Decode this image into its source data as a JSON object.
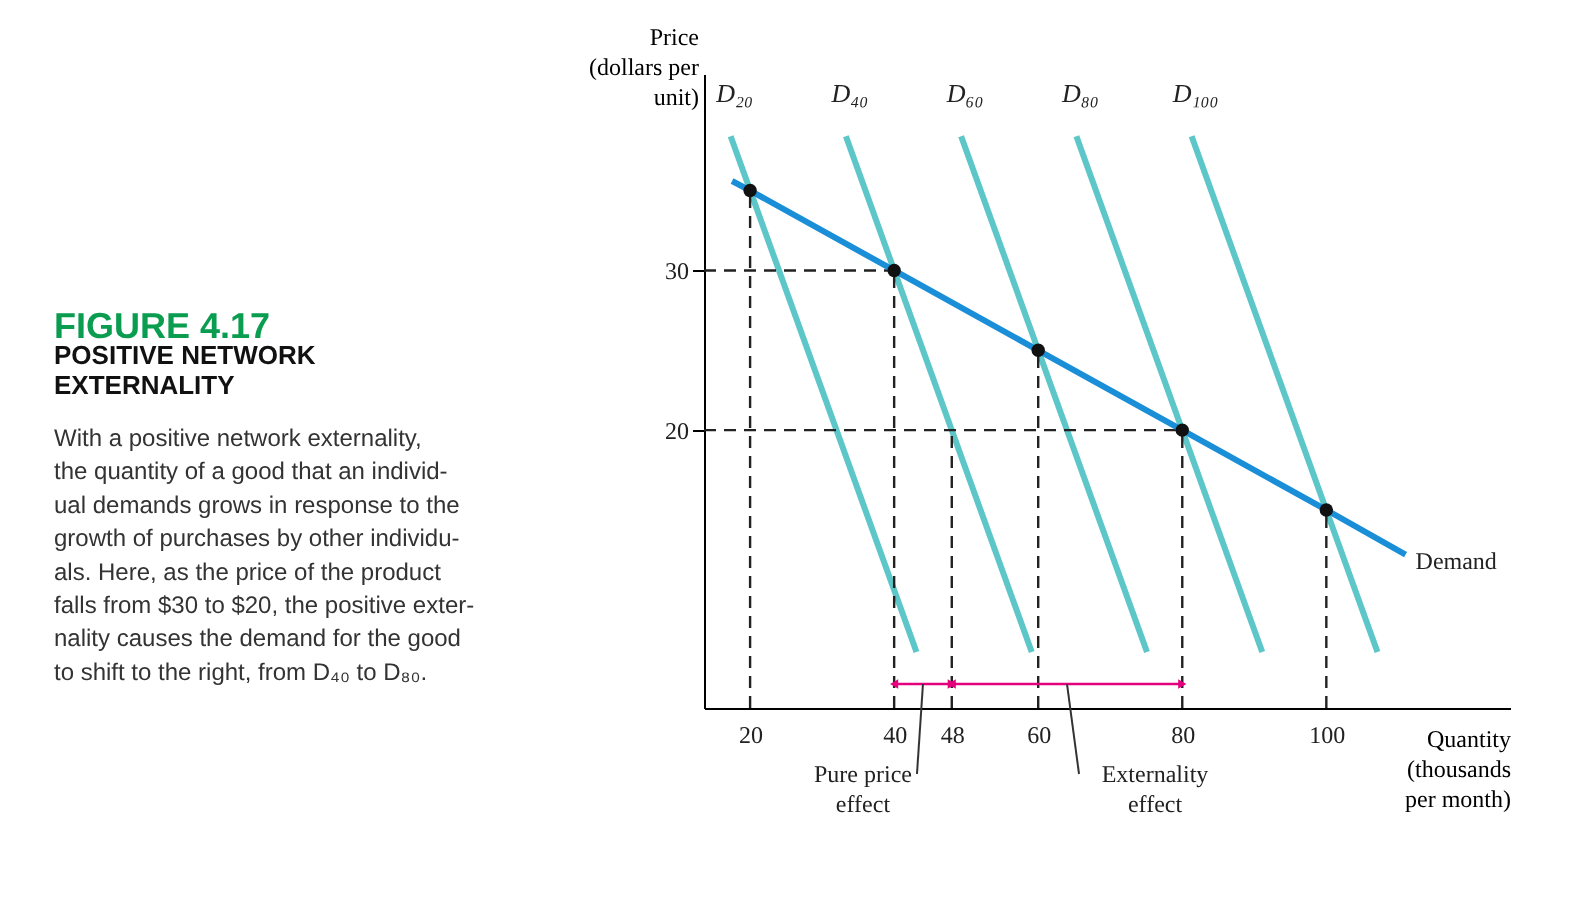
{
  "chart_data": {
    "type": "line",
    "xlabel": "Quantity\n(thousands\nper month)",
    "ylabel": "Price\n(dollars per\nunit)",
    "xlim": [
      13.6,
      125.5
    ],
    "ylim": [
      2.6,
      42.3
    ],
    "xticks": [
      20,
      40,
      48,
      60,
      80,
      100
    ],
    "yticks": [
      20,
      30
    ],
    "series": [
      {
        "name": "D₂₀",
        "color": "#5cc6c9",
        "x": [
          17.3,
          43.1
        ],
        "values": [
          38.4,
          6.1
        ]
      },
      {
        "name": "D₄₀",
        "color": "#5cc6c9",
        "x": [
          33.3,
          59.1
        ],
        "values": [
          38.4,
          6.1
        ]
      },
      {
        "name": "D₆₀",
        "color": "#5cc6c9",
        "x": [
          49.3,
          75.1
        ],
        "values": [
          38.4,
          6.1
        ]
      },
      {
        "name": "D₈₀",
        "color": "#5cc6c9",
        "x": [
          65.3,
          91.1
        ],
        "values": [
          38.4,
          6.1
        ]
      },
      {
        "name": "D₁₀₀",
        "color": "#5cc6c9",
        "x": [
          81.3,
          107.1
        ],
        "values": [
          38.4,
          6.1
        ]
      },
      {
        "type": "line",
        "color": "#222222",
        "line_style": "dashed",
        "x": [
          20,
          20
        ],
        "values": [
          2.6,
          35
        ]
      },
      {
        "type": "line",
        "color": "#222222",
        "line_style": "dashed",
        "x": [
          40,
          40
        ],
        "values": [
          2.6,
          30
        ]
      },
      {
        "type": "line",
        "color": "#222222",
        "line_style": "dashed",
        "x": [
          48,
          48
        ],
        "values": [
          2.6,
          20
        ]
      },
      {
        "type": "line",
        "color": "#222222",
        "line_style": "dashed",
        "x": [
          60,
          60
        ],
        "values": [
          2.6,
          25
        ]
      },
      {
        "type": "line",
        "color": "#222222",
        "line_style": "dashed",
        "x": [
          80,
          80
        ],
        "values": [
          2.6,
          20
        ]
      },
      {
        "type": "line",
        "color": "#222222",
        "line_style": "dashed",
        "x": [
          100,
          100
        ],
        "values": [
          2.6,
          15
        ]
      },
      {
        "type": "line",
        "color": "#222222",
        "line_style": "dashed",
        "x": [
          13.6,
          40
        ],
        "values": [
          30,
          30
        ]
      },
      {
        "type": "line",
        "color": "#222222",
        "line_style": "dashed",
        "x": [
          13.6,
          80
        ],
        "values": [
          20,
          20
        ]
      },
      {
        "name": "Demand",
        "color": "#1a8fd8",
        "x": [
          17.5,
          20,
          40,
          60,
          80,
          100,
          111
        ],
        "values": [
          35.6,
          35,
          30,
          25,
          20,
          15,
          12.2
        ]
      },
      {
        "type": "scatter",
        "color": "#111111",
        "marker": "circle",
        "x": [
          20,
          40,
          60,
          80,
          100
        ],
        "values": [
          35,
          30,
          25,
          20,
          15
        ]
      },
      {
        "type": "line",
        "color": "#e5007d",
        "marker": "triangle",
        "x": [
          40,
          48
        ],
        "values": [
          4.1,
          4.1
        ]
      },
      {
        "type": "line",
        "color": "#e5007d",
        "marker": "triangle",
        "x": [
          48,
          80
        ],
        "values": [
          4.1,
          4.1
        ]
      }
    ],
    "annotations": [
      "FIGURE 4.17",
      "POSITIVE NETWORK\nEXTERNALITY",
      "With a positive network externality,\nthe quantity of a good that an individ-\nual demands grows in response to the\ngrowth of purchases by other individu-\nals. Here, as the price of the product\nfalls from $30 to $20, the positive exter-\nnality causes the demand for the good\nto shift to the right, from D₄₀ to D₈₀.",
      {
        "text": "Pure price\neffect",
        "x": 44,
        "y": 4.1
      },
      {
        "text": "Externality\neffect",
        "x": 64,
        "y": 4.1
      }
    ]
  }
}
